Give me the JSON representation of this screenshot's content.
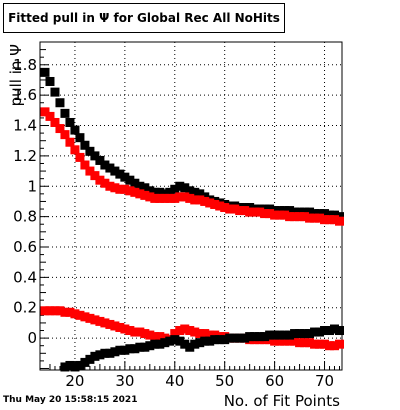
{
  "title": "Fitted pull in  Ψ  for Global Rec All NoHits",
  "timestamp": "Thu May 20 15:58:15 2021",
  "chart_data": {
    "type": "scatter",
    "title": "Fitted pull in  Ψ  for Global Rec All NoHits",
    "xlabel": "No. of Fit Points",
    "ylabel": "pull in Ψ",
    "xlim": [
      13,
      73.5
    ],
    "ylim": [
      -0.21,
      1.95
    ],
    "xticks": [
      20,
      30,
      40,
      50,
      60,
      70
    ],
    "yticks": [
      0,
      0.2,
      0.4,
      0.6,
      0.8,
      1,
      1.2,
      1.4,
      1.6,
      1.8
    ],
    "ytick_labels": [
      "0",
      "0.2",
      "0.4",
      "0.6",
      "0.8",
      "1",
      "1.2",
      "1.4",
      "1.6",
      "1.8"
    ],
    "grid": true,
    "series": [
      {
        "color": "#000000",
        "x": [
          14,
          15,
          16,
          17,
          18,
          19,
          20,
          21,
          22,
          23,
          24,
          25,
          26,
          27,
          28,
          29,
          30,
          31,
          32,
          33,
          34,
          35,
          36,
          37,
          38,
          39,
          40,
          41,
          42,
          43,
          44,
          45,
          46,
          47,
          48,
          49,
          50,
          51,
          52,
          53,
          54,
          55,
          56,
          57,
          58,
          59,
          60,
          61,
          62,
          63,
          64,
          65,
          66,
          67,
          68,
          69,
          70,
          71,
          72,
          73
        ],
        "y": [
          1.75,
          1.69,
          1.62,
          1.55,
          1.48,
          1.42,
          1.37,
          1.32,
          1.27,
          1.23,
          1.2,
          1.17,
          1.14,
          1.12,
          1.1,
          1.08,
          1.06,
          1.04,
          1.02,
          1.0,
          0.99,
          0.97,
          0.96,
          0.96,
          0.95,
          0.96,
          0.98,
          1.0,
          0.99,
          0.97,
          0.96,
          0.95,
          0.93,
          0.91,
          0.9,
          0.89,
          0.88,
          0.87,
          0.87,
          0.86,
          0.86,
          0.86,
          0.85,
          0.85,
          0.85,
          0.85,
          0.84,
          0.84,
          0.84,
          0.84,
          0.83,
          0.83,
          0.83,
          0.83,
          0.82,
          0.82,
          0.82,
          0.81,
          0.81,
          0.8
        ]
      },
      {
        "color": "#ff0000",
        "x": [
          14,
          15,
          16,
          17,
          18,
          19,
          20,
          21,
          22,
          23,
          24,
          25,
          26,
          27,
          28,
          29,
          30,
          31,
          32,
          33,
          34,
          35,
          36,
          37,
          38,
          39,
          40,
          41,
          42,
          43,
          44,
          45,
          46,
          47,
          48,
          49,
          50,
          51,
          52,
          53,
          54,
          55,
          56,
          57,
          58,
          59,
          60,
          61,
          62,
          63,
          64,
          65,
          66,
          67,
          68,
          69,
          70,
          71,
          72,
          73
        ],
        "y": [
          1.49,
          1.46,
          1.42,
          1.38,
          1.34,
          1.29,
          1.24,
          1.19,
          1.14,
          1.1,
          1.07,
          1.04,
          1.02,
          1.0,
          0.99,
          0.98,
          0.98,
          0.97,
          0.96,
          0.95,
          0.94,
          0.93,
          0.92,
          0.92,
          0.92,
          0.92,
          0.92,
          0.93,
          0.93,
          0.92,
          0.91,
          0.91,
          0.9,
          0.89,
          0.88,
          0.87,
          0.86,
          0.85,
          0.85,
          0.84,
          0.84,
          0.83,
          0.83,
          0.83,
          0.82,
          0.82,
          0.81,
          0.81,
          0.81,
          0.8,
          0.8,
          0.8,
          0.8,
          0.79,
          0.79,
          0.79,
          0.78,
          0.78,
          0.78,
          0.77
        ]
      },
      {
        "color": "#ff0000",
        "x": [
          14,
          15,
          16,
          17,
          18,
          19,
          20,
          21,
          22,
          23,
          24,
          25,
          26,
          27,
          28,
          29,
          30,
          31,
          32,
          33,
          34,
          35,
          36,
          37,
          38,
          39,
          40,
          41,
          42,
          43,
          44,
          45,
          46,
          47,
          48,
          49,
          50,
          51,
          52,
          53,
          54,
          55,
          56,
          57,
          58,
          59,
          60,
          61,
          62,
          63,
          64,
          65,
          66,
          67,
          68,
          69,
          70,
          71,
          72,
          73
        ],
        "y": [
          0.18,
          0.18,
          0.18,
          0.18,
          0.17,
          0.17,
          0.16,
          0.15,
          0.14,
          0.13,
          0.12,
          0.11,
          0.1,
          0.09,
          0.08,
          0.07,
          0.06,
          0.05,
          0.04,
          0.04,
          0.03,
          0.02,
          0.01,
          0.01,
          0.0,
          -0.01,
          0.03,
          0.05,
          0.06,
          0.05,
          0.04,
          0.03,
          0.03,
          0.02,
          0.02,
          0.01,
          0.01,
          0.0,
          0.0,
          0.0,
          0.0,
          -0.01,
          -0.01,
          -0.01,
          -0.01,
          -0.01,
          -0.02,
          -0.02,
          -0.02,
          -0.02,
          -0.02,
          -0.03,
          -0.03,
          -0.03,
          -0.04,
          -0.04,
          -0.04,
          -0.05,
          -0.05,
          -0.04
        ]
      },
      {
        "color": "#000000",
        "x": [
          18,
          19,
          20,
          21,
          22,
          23,
          24,
          25,
          26,
          27,
          28,
          29,
          30,
          31,
          32,
          33,
          34,
          35,
          36,
          37,
          38,
          39,
          40,
          41,
          42,
          43,
          44,
          45,
          46,
          47,
          48,
          49,
          50,
          51,
          52,
          53,
          54,
          55,
          56,
          57,
          58,
          59,
          60,
          61,
          62,
          63,
          64,
          65,
          66,
          67,
          68,
          69,
          70,
          71,
          72,
          73
        ],
        "y": [
          -0.19,
          -0.18,
          -0.19,
          -0.18,
          -0.16,
          -0.14,
          -0.12,
          -0.11,
          -0.1,
          -0.1,
          -0.09,
          -0.08,
          -0.08,
          -0.07,
          -0.07,
          -0.06,
          -0.06,
          -0.05,
          -0.04,
          -0.04,
          -0.03,
          -0.02,
          -0.01,
          -0.02,
          -0.04,
          -0.06,
          -0.04,
          -0.03,
          -0.02,
          -0.02,
          -0.01,
          -0.01,
          -0.01,
          0.0,
          0.0,
          0.0,
          0.0,
          0.01,
          0.01,
          0.01,
          0.01,
          0.02,
          0.02,
          0.02,
          0.02,
          0.02,
          0.03,
          0.03,
          0.03,
          0.03,
          0.04,
          0.04,
          0.05,
          0.05,
          0.06,
          0.05
        ]
      }
    ]
  }
}
